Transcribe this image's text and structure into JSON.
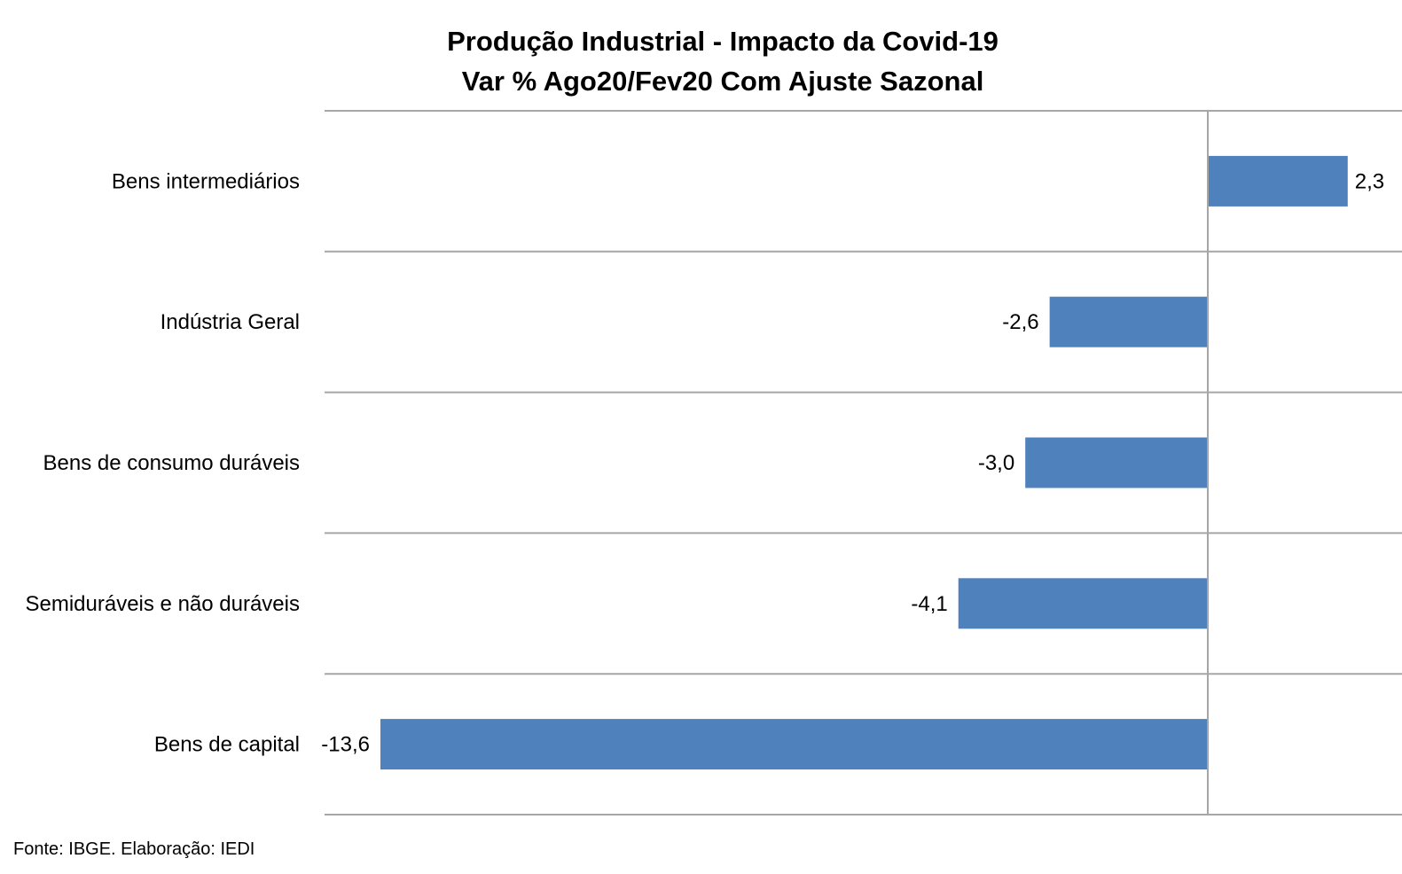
{
  "chart_data": {
    "type": "bar",
    "orientation": "horizontal",
    "title": "Produção Industrial - Impacto da Covid-19",
    "subtitle": "Var % Ago20/Fev20 Com Ajuste Sazonal",
    "categories": [
      "Bens intermediários",
      "Indústria Geral",
      "Bens de consumo duráveis",
      "Semiduráveis e não duráveis",
      "Bens de capital"
    ],
    "values": [
      2.3,
      -2.6,
      -3.0,
      -4.1,
      -13.6
    ],
    "value_labels": [
      "2,3",
      "-2,6",
      "-3,0",
      "-4,1",
      "-13,6"
    ],
    "xlim": [
      -14.5,
      3.0
    ],
    "bar_color": "#4F81BD",
    "grid": "horizontal category separators",
    "legend": "none"
  },
  "source": "Fonte: IBGE. Elaboração: IEDI"
}
